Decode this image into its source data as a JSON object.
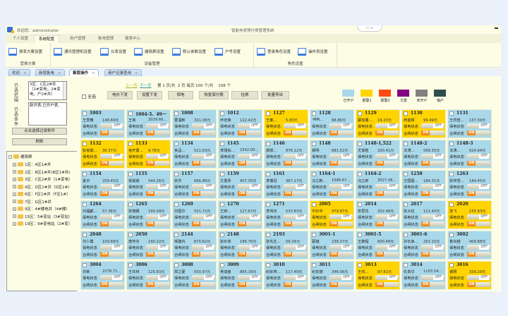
{
  "header": {
    "welcome": "欢迎您：administrator",
    "system_title": "智能电表预付费管理系统",
    "collapse": "☐ ∨"
  },
  "menu_tabs": [
    {
      "label": "个人设置"
    },
    {
      "label": "系统配置",
      "active": true
    },
    {
      "label": "用户管理"
    },
    {
      "label": "售电管理"
    },
    {
      "label": "报表中心"
    }
  ],
  "ribbon": {
    "groups": [
      {
        "label": "营费方案",
        "items": [
          "费率方案设置"
        ]
      },
      {
        "label": "设备管理",
        "items": [
          "通讯管理机设置",
          "仪表设置",
          "建筑群设置",
          "默认参数设置",
          "户号设置"
        ]
      },
      {
        "label": "角色设置",
        "items": [
          "登录角色设置",
          "操作员设置"
        ]
      }
    ]
  },
  "page_tabs": [
    {
      "label": "欢迎"
    },
    {
      "label": "新增售电"
    },
    {
      "label": "集管操作",
      "active": true
    },
    {
      "label": "用户记录查询"
    }
  ],
  "left": {
    "range_label": "已选范围",
    "range_value": "3区：C区2#井（1#变电，2#变电，户2#井）",
    "cond_label": "已选条件",
    "cond_value": "新开表,已开户表,",
    "filter_button": "点击选择过滤条件",
    "refresh_button": "刷新",
    "tree": {
      "root": "建筑群",
      "items": [
        "1区：A区1#井",
        "2区：B区1#井(B区1#井)",
        "3区：C区2#井（1#变电）",
        "4区：D区1#井（D区1#）",
        "6区：F区1#井（F区1#）",
        "7区：G区1#井",
        "9区：4#楼电井（4#楼）",
        "15区：5#变站（3#变站）",
        "19区：9#变电站（2#变）"
      ]
    }
  },
  "toolbar": {
    "prev": "上一页",
    "next": "下一页",
    "page_info": [
      "第",
      "1",
      "页/共",
      "2",
      "页",
      "每页",
      "100",
      "个/共",
      "108",
      "个"
    ],
    "select_all": "全选",
    "buttons": [
      "电价下发",
      "设置下发",
      "保电",
      "恢复保付费",
      "拉闸",
      "批量导出"
    ]
  },
  "legend": [
    {
      "label": "已开户",
      "color": "#a9d8ea"
    },
    {
      "label": "报警1",
      "color": "#ffd400"
    },
    {
      "label": "报警2",
      "color": "#ff4a14"
    },
    {
      "label": "欠费",
      "color": "#800080"
    },
    {
      "label": "未开户",
      "color": "#808080"
    },
    {
      "label": "销户",
      "color": "#2f4f4f"
    }
  ],
  "card_labels": {
    "power_status": "保电状态",
    "switch_status": "合闸状态",
    "off": "OFF",
    "on": "ON"
  },
  "cards": [
    {
      "id": "1003",
      "name": "王爱春",
      "amount": "148.84元",
      "status": "已开户"
    },
    {
      "id": "1004-5、49一",
      "name": "王英",
      "amount": "2029.66…",
      "status": "已开户"
    },
    {
      "id": "1008",
      "name": "曹温新",
      "amount": "331.08元",
      "status": "已开户"
    },
    {
      "id": "1012",
      "name": "乔宏荣",
      "amount": "122.42元",
      "status": "已开户"
    },
    {
      "id": "1127",
      "name": "王秦…",
      "amount": "5.83元",
      "status": "报警1"
    },
    {
      "id": "1128",
      "name": "-MM…",
      "amount": "88.86元",
      "status": "已开户"
    },
    {
      "id": "1129",
      "name": "郦加薯…",
      "amount": "19.23元",
      "status": "报警1"
    },
    {
      "id": "1130",
      "name": "商金辉",
      "amount": "99.49元",
      "status": "报警1"
    },
    {
      "id": "1131",
      "name": "王然普…",
      "amount": "137.59元",
      "status": "已开户"
    },
    {
      "id": "1132",
      "name": "彭俊娟…",
      "amount": "36.37元",
      "status": "报警1"
    },
    {
      "id": "1133",
      "name": "信开勇…",
      "amount": "9.78元",
      "status": "报警1"
    },
    {
      "id": "1134",
      "name": "条品…",
      "amount": "521.63元",
      "status": "已开户"
    },
    {
      "id": "1145",
      "name": "李瑾佑…",
      "amount": "1542.00…",
      "status": "已开户"
    },
    {
      "id": "1146",
      "name": "郝郭…",
      "amount": "876.12元",
      "status": "已开户"
    },
    {
      "id": "1148",
      "name": "郝明",
      "amount": "681.52元",
      "status": "已开户"
    },
    {
      "id": "1148-1,522",
      "name": "尤俊胜",
      "amount": "330.41元",
      "status": "已开户"
    },
    {
      "id": "1148-2",
      "name": "法涛…",
      "amount": "568.35元",
      "status": "已开户"
    },
    {
      "id": "1148-3",
      "name": "法涛…",
      "amount": "624.64元",
      "status": "已开户"
    },
    {
      "id": "1154",
      "name": "金日",
      "amount": "209.45元",
      "status": "已开户"
    },
    {
      "id": "1155",
      "name": "晏晨晨",
      "amount": "544.26元",
      "status": "已开户"
    },
    {
      "id": "1157",
      "name": "张杰",
      "amount": "666.86元",
      "status": "已开户"
    },
    {
      "id": "1159",
      "name": "文重贵",
      "amount": "907.35元",
      "status": "已开户"
    },
    {
      "id": "1161",
      "name": "李撤冠",
      "amount": "367.17元",
      "status": "已开户"
    },
    {
      "id": "1164-1",
      "name": "冯立新…",
      "amount": "1586.67…",
      "status": "已开户"
    },
    {
      "id": "1164-2",
      "name": "冯立新",
      "amount": "3527.08…",
      "status": "已开户"
    },
    {
      "id": "1258",
      "name": "王国图…",
      "amount": "184.31元",
      "status": "已开户"
    },
    {
      "id": "1263",
      "name": "张林雪…",
      "amount": "184.45元",
      "status": "已开户"
    },
    {
      "id": "1264",
      "name": "刘福都…",
      "amount": "57.36元",
      "status": "已开户"
    },
    {
      "id": "1265",
      "name": "张丽娜",
      "amount": "199.09元",
      "status": "已开户"
    },
    {
      "id": "1269",
      "name": "刘国华",
      "amount": "531.72元",
      "status": "已开户"
    },
    {
      "id": "1270",
      "name": "王婷…",
      "amount": "127.67元",
      "status": "已开户"
    },
    {
      "id": "1271",
      "name": "李伟杰",
      "amount": "533.83元",
      "status": "已开户"
    },
    {
      "id": "2005",
      "name": "牛红中",
      "amount": "479.87元",
      "status": "报警1"
    },
    {
      "id": "2014",
      "name": "安思花",
      "amount": "202.96元",
      "status": "已开户"
    },
    {
      "id": "2017",
      "name": "张大任",
      "amount": "121.40元",
      "status": "已开户"
    },
    {
      "id": "2020",
      "name": "佳飞",
      "amount": "155.93元",
      "status": "报警1"
    },
    {
      "id": "2048",
      "name": "刘少霞",
      "amount": "109.68元",
      "status": "已开户"
    },
    {
      "id": "2050",
      "name": "唐传东",
      "amount": "190.22元",
      "status": "已开户"
    },
    {
      "id": "2144",
      "name": "邹建内",
      "amount": "870.62元",
      "status": "已开户"
    },
    {
      "id": "2148",
      "name": "彭红侠",
      "amount": "186.76元",
      "status": "已开户"
    },
    {
      "id": "2193",
      "name": "张先生…",
      "amount": "59.34元",
      "status": "已开户"
    },
    {
      "id": "3001-1",
      "name": "蔡雄",
      "amount": "238.37元",
      "status": "已开户"
    },
    {
      "id": "3001-5",
      "name": "王鹏程",
      "amount": "690.48元",
      "status": "已开户"
    },
    {
      "id": "3001-6",
      "name": "孙长争…",
      "amount": "293.15元",
      "status": "已开户"
    },
    {
      "id": "3002",
      "name": "鲁买越",
      "amount": "409.88元",
      "status": "已开户"
    },
    {
      "id": "3004",
      "name": "许新",
      "amount": "2278.71…",
      "status": "已开户"
    },
    {
      "id": "3006",
      "name": "王年林",
      "amount": "125.83元",
      "status": "已开户"
    },
    {
      "id": "3008",
      "name": "周之夏",
      "amount": "550.97元",
      "status": "已开户"
    },
    {
      "id": "3009",
      "name": "吴成者",
      "amount": "885.16元",
      "status": "已开户"
    },
    {
      "id": "3010",
      "name": "纪彩燕…",
      "amount": "117.49元",
      "status": "已开户"
    },
    {
      "id": "3011",
      "name": "纪宏德",
      "amount": "346.06元",
      "status": "已开户"
    },
    {
      "id": "3013",
      "name": "王欣…",
      "amount": "97.81元",
      "status": "报警1"
    },
    {
      "id": "3014",
      "name": "仇贵华",
      "amount": "1103.54…",
      "status": "已开户"
    },
    {
      "id": "3016",
      "name": "谢刚",
      "amount": "339.29元",
      "status": "报警1"
    }
  ]
}
